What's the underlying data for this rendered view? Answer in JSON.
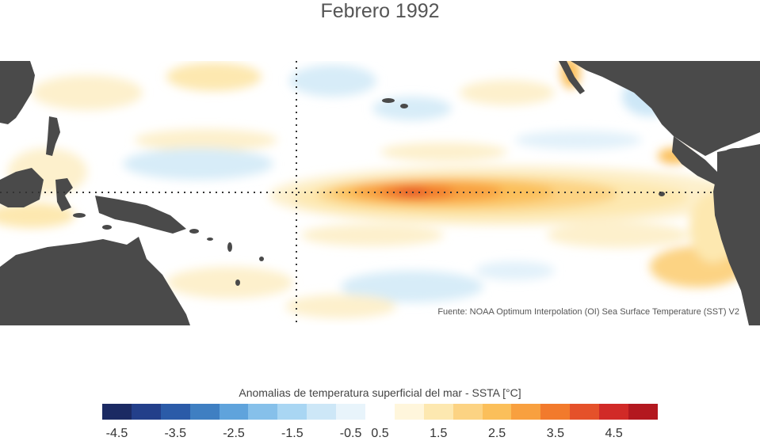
{
  "title": "Febrero 1992",
  "source": "Fuente: NOAA Optimum Interpolation (OI) Sea Surface Temperature (SST) V2",
  "legend": {
    "title": "Anomalias de temperatura superficial del mar - SSTA  [°C]",
    "bins": [
      "#1b2a63",
      "#233f8a",
      "#2b5ba8",
      "#3f7fc2",
      "#5fa3dc",
      "#86c0ea",
      "#a9d6f3",
      "#cde7f7",
      "#e8f4fb",
      "#ffffff",
      "#fff6dc",
      "#fde8b0",
      "#fcd383",
      "#fbbf5a",
      "#f8a03f",
      "#f27a2c",
      "#e5512a",
      "#d12a27",
      "#b3181f"
    ],
    "ticks": [
      "-4.5",
      "-3.5",
      "-2.5",
      "-1.5",
      "-0.5",
      "0.5",
      "1.5",
      "2.5",
      "3.5",
      "4.5"
    ]
  },
  "colors": {
    "land": "#4a4a4a",
    "equator_line": "#333333"
  }
}
